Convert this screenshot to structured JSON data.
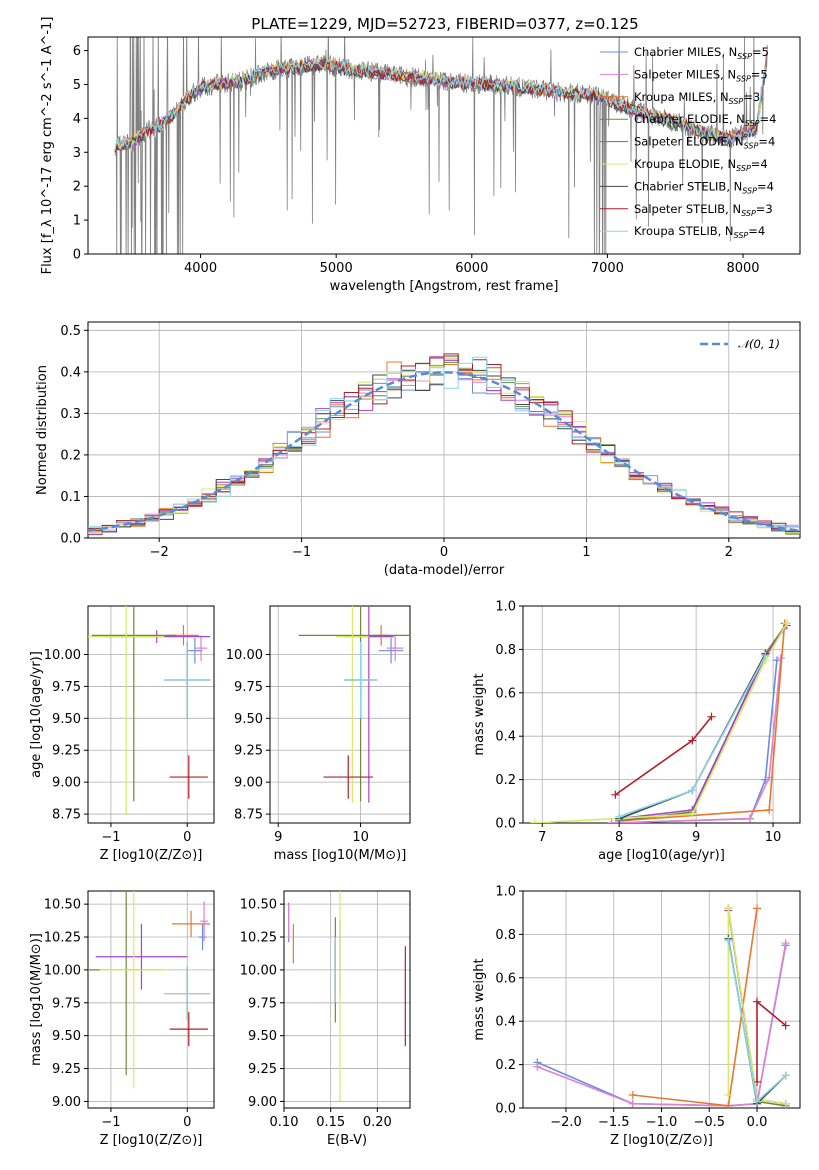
{
  "title": "PLATE=1229, MJD=52723, FIBERID=0377, z=0.125",
  "colors": {
    "Chabrier MILES": "#6a8ed9",
    "Salpeter MILES": "#e07fd4",
    "Kroupa MILES": "#e8772e",
    "Chabrier ELODIE": "#6b8a3a",
    "Salpeter ELODIE": "#a545c9",
    "Kroupa ELODIE": "#d7e86a",
    "Chabrier STELIB": "#404a50",
    "Salpeter STELIB": "#b0202a",
    "Kroupa STELIB": "#8ad6e6"
  },
  "chart_data": [
    {
      "type": "line",
      "id": "spectrum",
      "xlabel": "wavelength [Angstrom, rest frame]",
      "ylabel": "Flux [f_λ 10^-17 erg cm^-2 s^-1 A^-1]",
      "xlim": [
        3170,
        8420
      ],
      "ylim": [
        0,
        6.4
      ],
      "xticks": [
        4000,
        5000,
        6000,
        7000,
        8000
      ],
      "yticks": [
        0,
        1,
        2,
        3,
        4,
        5,
        6
      ],
      "grid": false,
      "legend_position": "right",
      "legend": [
        {
          "name": "Chabrier MILES",
          "sub": "SSP",
          "n": "5"
        },
        {
          "name": "Salpeter MILES",
          "sub": "SSP",
          "n": "5"
        },
        {
          "name": "Kroupa MILES",
          "sub": "SSP",
          "n": "3"
        },
        {
          "name": "Chabrier ELODIE",
          "sub": "SSP",
          "n": "4"
        },
        {
          "name": "Salpeter ELODIE",
          "sub": "SSP",
          "n": "4"
        },
        {
          "name": "Kroupa ELODIE",
          "sub": "SSP",
          "n": "4"
        },
        {
          "name": "Chabrier STELIB",
          "sub": "SSP",
          "n": "4"
        },
        {
          "name": "Salpeter STELIB",
          "sub": "SSP",
          "n": "3"
        },
        {
          "name": "Kroupa STELIB",
          "sub": "SSP",
          "n": "4"
        }
      ],
      "continuum": [
        [
          3370,
          3.2
        ],
        [
          3500,
          3.3
        ],
        [
          3600,
          3.6
        ],
        [
          3700,
          3.8
        ],
        [
          3800,
          4.1
        ],
        [
          3900,
          4.6
        ],
        [
          4000,
          4.9
        ],
        [
          4100,
          5.0
        ],
        [
          4300,
          5.1
        ],
        [
          4500,
          5.4
        ],
        [
          4700,
          5.5
        ],
        [
          4900,
          5.6
        ],
        [
          5100,
          5.45
        ],
        [
          5300,
          5.35
        ],
        [
          5500,
          5.25
        ],
        [
          5700,
          5.15
        ],
        [
          5900,
          5.05
        ],
        [
          6100,
          5.0
        ],
        [
          6300,
          4.95
        ],
        [
          6500,
          4.85
        ],
        [
          6700,
          4.75
        ],
        [
          6900,
          4.7
        ],
        [
          7100,
          4.4
        ],
        [
          7300,
          4.1
        ],
        [
          7500,
          3.9
        ],
        [
          7700,
          3.6
        ],
        [
          7900,
          3.4
        ],
        [
          8100,
          3.7
        ],
        [
          8180,
          5.9
        ]
      ]
    },
    {
      "type": "histogram",
      "id": "residuals",
      "xlabel": "(data-model)/error",
      "ylabel": "Normed distribution",
      "xlim": [
        -2.5,
        2.5
      ],
      "ylim": [
        0,
        0.52
      ],
      "xticks": [
        -2,
        -1,
        0,
        1,
        2
      ],
      "yticks": [
        0.0,
        0.1,
        0.2,
        0.3,
        0.4,
        0.5
      ],
      "grid": true,
      "legend_position": "top-right",
      "reference_curve": "𝒩(0, 1)",
      "bin_width": 0.1
    },
    {
      "type": "scatter",
      "id": "age-vs-Z",
      "xlabel": "Z [log10(Z/Z⊙)]",
      "ylabel": "age  [log10(age/yr)]",
      "xlim": [
        -1.3,
        0.35
      ],
      "ylim": [
        8.68,
        10.38
      ],
      "xticks": [
        -1,
        0
      ],
      "yticks": [
        8.75,
        9.0,
        9.25,
        9.5,
        9.75,
        10.0
      ],
      "grid": true,
      "points": [
        {
          "model": "Chabrier MILES",
          "x": 0.1,
          "y": 10.03,
          "xerr": 0.1,
          "yerr": 0.1
        },
        {
          "model": "Salpeter MILES",
          "x": 0.18,
          "y": 10.05,
          "xerr": 0.08,
          "yerr": 0.1
        },
        {
          "model": "Kroupa MILES",
          "x": -0.05,
          "y": 10.15,
          "xerr": 0.2,
          "yerr": 0.08
        },
        {
          "model": "Chabrier ELODIE",
          "x": -0.7,
          "y": 10.15,
          "xerr": 0.55,
          "yerr": 1.3
        },
        {
          "model": "Salpeter ELODIE",
          "x": -0.4,
          "y": 10.14,
          "xerr": 0.7,
          "yerr": 0.05
        },
        {
          "model": "Kroupa ELODIE",
          "x": -0.8,
          "y": 10.14,
          "xerr": 0.5,
          "yerr": 1.4
        },
        {
          "model": "Chabrier STELIB",
          "x": 0.0,
          "y": 9.8,
          "xerr": 0.3,
          "yerr": 0.3
        },
        {
          "model": "Salpeter STELIB",
          "x": 0.02,
          "y": 9.04,
          "xerr": 0.25,
          "yerr": 0.17
        },
        {
          "model": "Kroupa STELIB",
          "x": 0.0,
          "y": 9.8,
          "xerr": 0.3,
          "yerr": 0.3
        }
      ]
    },
    {
      "type": "scatter",
      "id": "age-vs-mass",
      "xlabel": "mass [log10(M/M⊙)]",
      "ylabel": "",
      "xlim": [
        8.9,
        10.6
      ],
      "ylim": [
        8.68,
        10.38
      ],
      "xticks": [
        9,
        10
      ],
      "yticks": [
        8.75,
        9.0,
        9.25,
        9.5,
        9.75,
        10.0
      ],
      "grid": true,
      "points": [
        {
          "model": "Chabrier MILES",
          "x": 10.37,
          "y": 10.03,
          "xerr": 0.15,
          "yerr": 0.1
        },
        {
          "model": "Salpeter MILES",
          "x": 10.42,
          "y": 10.05,
          "xerr": 0.1,
          "yerr": 0.1
        },
        {
          "model": "Kroupa MILES",
          "x": 10.25,
          "y": 10.15,
          "xerr": 0.1,
          "yerr": 0.08
        },
        {
          "model": "Chabrier ELODIE",
          "x": 10.0,
          "y": 10.15,
          "xerr": 0.75,
          "yerr": 1.3
        },
        {
          "model": "Salpeter ELODIE",
          "x": 10.1,
          "y": 10.14,
          "xerr": 0.3,
          "yerr": 1.3
        },
        {
          "model": "Kroupa ELODIE",
          "x": 9.9,
          "y": 10.14,
          "xerr": 0.2,
          "yerr": 1.3
        },
        {
          "model": "Chabrier STELIB",
          "x": 10.0,
          "y": 9.8,
          "xerr": 0.2,
          "yerr": 0.3
        },
        {
          "model": "Salpeter STELIB",
          "x": 9.85,
          "y": 9.04,
          "xerr": 0.3,
          "yerr": 0.17
        },
        {
          "model": "Kroupa STELIB",
          "x": 10.0,
          "y": 9.8,
          "xerr": 0.2,
          "yerr": 0.3
        }
      ]
    },
    {
      "type": "line",
      "id": "massweight-vs-age",
      "xlabel": "age  [log10(age/yr)]",
      "ylabel": "mass weight",
      "xlim": [
        6.75,
        10.35
      ],
      "ylim": [
        0,
        1.0
      ],
      "xticks": [
        7,
        8,
        9,
        10
      ],
      "yticks": [
        0.0,
        0.2,
        0.4,
        0.6,
        0.8,
        1.0
      ],
      "grid": true,
      "series": [
        {
          "model": "Chabrier MILES",
          "x": [
            7.9,
            9.7,
            9.9,
            10.05
          ],
          "y": [
            0.0,
            0.02,
            0.2,
            0.75
          ]
        },
        {
          "model": "Salpeter MILES",
          "x": [
            7.9,
            9.7,
            9.95,
            10.1
          ],
          "y": [
            0.0,
            0.02,
            0.21,
            0.76
          ]
        },
        {
          "model": "Kroupa MILES",
          "x": [
            8.0,
            9.95,
            10.15
          ],
          "y": [
            0.01,
            0.06,
            0.92
          ]
        },
        {
          "model": "Chabrier ELODIE",
          "x": [
            8.0,
            8.95,
            9.9,
            10.18
          ],
          "y": [
            0.01,
            0.05,
            0.78,
            0.92
          ]
        },
        {
          "model": "Salpeter ELODIE",
          "x": [
            8.0,
            8.95,
            9.9,
            10.18
          ],
          "y": [
            0.02,
            0.06,
            0.77,
            0.91
          ]
        },
        {
          "model": "Kroupa ELODIE",
          "x": [
            6.9,
            8.95,
            9.9,
            10.18
          ],
          "y": [
            0.0,
            0.04,
            0.75,
            0.92
          ]
        },
        {
          "model": "Chabrier STELIB",
          "x": [
            8.0,
            8.95,
            9.9
          ],
          "y": [
            0.02,
            0.15,
            0.78
          ]
        },
        {
          "model": "Salpeter STELIB",
          "x": [
            7.95,
            8.95,
            9.2
          ],
          "y": [
            0.13,
            0.38,
            0.49
          ]
        },
        {
          "model": "Kroupa STELIB",
          "x": [
            8.0,
            8.95,
            9.9
          ],
          "y": [
            0.03,
            0.15,
            0.77
          ]
        }
      ]
    },
    {
      "type": "scatter",
      "id": "mass-vs-Z",
      "xlabel": "Z [log10(Z/Z⊙)]",
      "ylabel": "mass [log10(M/M⊙)]",
      "xlim": [
        -1.3,
        0.35
      ],
      "ylim": [
        8.95,
        10.6
      ],
      "xticks": [
        -1,
        0
      ],
      "yticks": [
        9.0,
        9.25,
        9.5,
        9.75,
        10.0,
        10.25,
        10.5
      ],
      "grid": true,
      "points": [
        {
          "model": "Chabrier MILES",
          "x": 0.2,
          "y": 10.25,
          "xerr": 0.05,
          "yerr": 0.1
        },
        {
          "model": "Salpeter MILES",
          "x": 0.22,
          "y": 10.37,
          "xerr": 0.05,
          "yerr": 0.15
        },
        {
          "model": "Kroupa MILES",
          "x": 0.05,
          "y": 10.35,
          "xerr": 0.25,
          "yerr": 0.1
        },
        {
          "model": "Chabrier ELODIE",
          "x": -0.8,
          "y": 10.0,
          "xerr": 0.5,
          "yerr": 0.8
        },
        {
          "model": "Salpeter ELODIE",
          "x": -0.6,
          "y": 10.1,
          "xerr": 0.6,
          "yerr": 0.25
        },
        {
          "model": "Kroupa ELODIE",
          "x": -0.7,
          "y": 10.0,
          "xerr": 0.45,
          "yerr": 0.9
        },
        {
          "model": "Chabrier STELIB",
          "x": 0.0,
          "y": 9.82,
          "xerr": 0.3,
          "yerr": 0.2
        },
        {
          "model": "Salpeter STELIB",
          "x": 0.02,
          "y": 9.55,
          "xerr": 0.25,
          "yerr": 0.13
        },
        {
          "model": "Kroupa STELIB",
          "x": 0.0,
          "y": 9.82,
          "xerr": 0.3,
          "yerr": 0.2
        }
      ]
    },
    {
      "type": "scatter",
      "id": "mass-vs-ebv",
      "xlabel": "E(B-V)",
      "ylabel": "",
      "xlim": [
        0.1,
        0.235
      ],
      "ylim": [
        8.95,
        10.6
      ],
      "xticks": [
        0.1,
        0.15,
        0.2
      ],
      "yticks": [
        9.0,
        9.25,
        9.5,
        9.75,
        10.0,
        10.25,
        10.5
      ],
      "grid": true,
      "points": [
        {
          "model": "Chabrier MILES",
          "x": 0.105,
          "y": 10.36,
          "yerr": 0.15
        },
        {
          "model": "Salpeter MILES",
          "x": 0.105,
          "y": 10.37,
          "yerr": 0.13
        },
        {
          "model": "Kroupa MILES",
          "x": 0.11,
          "y": 10.2,
          "yerr": 0.15
        },
        {
          "model": "Chabrier ELODIE",
          "x": 0.155,
          "y": 10.0,
          "yerr": 0.4
        },
        {
          "model": "Salpeter ELODIE",
          "x": 0.16,
          "y": 10.1,
          "yerr": 0.28
        },
        {
          "model": "Kroupa ELODIE",
          "x": 0.16,
          "y": 9.8,
          "yerr": 0.8
        },
        {
          "model": "Chabrier STELIB",
          "x": 0.155,
          "y": 10.0,
          "yerr": 0.25
        },
        {
          "model": "Salpeter STELIB",
          "x": 0.23,
          "y": 9.8,
          "yerr": 0.38
        },
        {
          "model": "Kroupa STELIB",
          "x": 0.155,
          "y": 10.0,
          "yerr": 0.25
        }
      ]
    },
    {
      "type": "line",
      "id": "massweight-vs-Z",
      "xlabel": "Z [log10(Z/Z⊙)]",
      "ylabel": "mass weight",
      "xlim": [
        -2.45,
        0.45
      ],
      "ylim": [
        0,
        1.0
      ],
      "xticks": [
        -2.0,
        -1.5,
        -1.0,
        -0.5,
        0.0
      ],
      "yticks": [
        0.0,
        0.2,
        0.4,
        0.6,
        0.8,
        1.0
      ],
      "grid": true,
      "series": [
        {
          "model": "Chabrier MILES",
          "x": [
            -2.3,
            -1.3,
            -0.3,
            0.0,
            0.3
          ],
          "y": [
            0.21,
            0.02,
            0.01,
            0.02,
            0.75
          ]
        },
        {
          "model": "Salpeter MILES",
          "x": [
            -2.3,
            -1.3,
            -0.3,
            0.0,
            0.3
          ],
          "y": [
            0.19,
            0.02,
            0.01,
            0.02,
            0.76
          ]
        },
        {
          "model": "Kroupa MILES",
          "x": [
            -1.3,
            -0.3,
            0.0
          ],
          "y": [
            0.06,
            0.01,
            0.92
          ]
        },
        {
          "model": "Chabrier ELODIE",
          "x": [
            -0.3,
            0.0,
            0.3
          ],
          "y": [
            0.92,
            0.03,
            0.01
          ]
        },
        {
          "model": "Salpeter ELODIE",
          "x": [
            -0.3,
            0.0,
            0.3
          ],
          "y": [
            0.91,
            0.04,
            0.02
          ]
        },
        {
          "model": "Kroupa ELODIE",
          "x": [
            -0.3,
            -0.3,
            0.0,
            0.3
          ],
          "y": [
            0.06,
            0.92,
            0.04,
            0.02
          ]
        },
        {
          "model": "Chabrier STELIB",
          "x": [
            -0.3,
            0.0,
            0.3
          ],
          "y": [
            0.78,
            0.02,
            0.15
          ]
        },
        {
          "model": "Salpeter STELIB",
          "x": [
            0.0,
            0.0,
            0.3
          ],
          "y": [
            0.12,
            0.49,
            0.38
          ]
        },
        {
          "model": "Kroupa STELIB",
          "x": [
            -0.3,
            0.0,
            0.3
          ],
          "y": [
            0.77,
            0.03,
            0.15
          ]
        }
      ]
    }
  ]
}
